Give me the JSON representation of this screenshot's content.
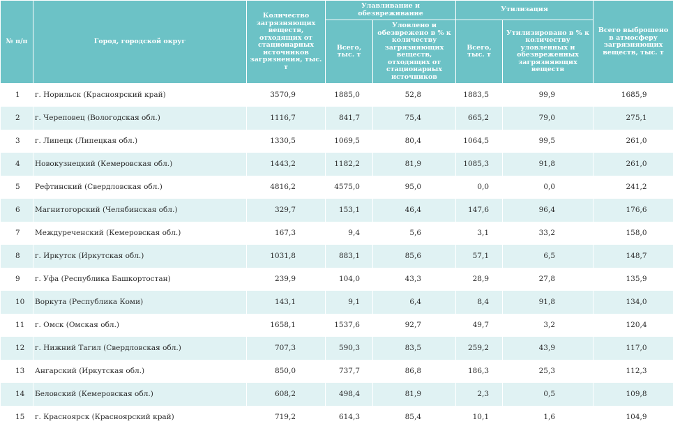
{
  "header": {
    "num": "№ п/п",
    "city": "Город, городской округ",
    "total_pollutants": "Количество загрязняющих веществ, отходящих от стационарных источников загрязнения, тыс. т",
    "capture_group": "Улавливание и обезвреживание",
    "capture_total": "Всего, тыс. т",
    "capture_pct": "Уловлено и обезврежено в % к количеству загрязняющих веществ, отходящих от стационарных источников",
    "util_group": "Утилизация",
    "util_total": "Всего, тыс. т",
    "util_pct": "Утилизировано в % к количеству уловленных и обезвреженных загрязняющих веществ",
    "emitted": "Всего выброшено в атмосферу загрязняющих веществ, тыс. т"
  },
  "rows": [
    {
      "n": "1",
      "city": "г. Норильск (Красноярский край)",
      "total": "3570,9",
      "cap": "1885,0",
      "cap_pct": "52,8",
      "util": "1883,5",
      "util_pct": "99,9",
      "emitted": "1685,9"
    },
    {
      "n": "2",
      "city": "г. Череповец (Вологодская обл.)",
      "total": "1116,7",
      "cap": "841,7",
      "cap_pct": "75,4",
      "util": "665,2",
      "util_pct": "79,0",
      "emitted": "275,1"
    },
    {
      "n": "3",
      "city": "г. Липецк (Липецкая обл.)",
      "total": "1330,5",
      "cap": "1069,5",
      "cap_pct": "80,4",
      "util": "1064,5",
      "util_pct": "99,5",
      "emitted": "261,0"
    },
    {
      "n": "4",
      "city": "Новокузнецкий (Кемеровская обл.)",
      "total": "1443,2",
      "cap": "1182,2",
      "cap_pct": "81,9",
      "util": "1085,3",
      "util_pct": "91,8",
      "emitted": "261,0"
    },
    {
      "n": "5",
      "city": "Рефтинский (Свердловская обл.)",
      "total": "4816,2",
      "cap": "4575,0",
      "cap_pct": "95,0",
      "util": "0,0",
      "util_pct": "0,0",
      "emitted": "241,2"
    },
    {
      "n": "6",
      "city": "Магнитогорский (Челябинская обл.)",
      "total": "329,7",
      "cap": "153,1",
      "cap_pct": "46,4",
      "util": "147,6",
      "util_pct": "96,4",
      "emitted": "176,6"
    },
    {
      "n": "7",
      "city": "Междуреченский (Кемеровская обл.)",
      "total": "167,3",
      "cap": "9,4",
      "cap_pct": "5,6",
      "util": "3,1",
      "util_pct": "33,2",
      "emitted": "158,0"
    },
    {
      "n": "8",
      "city": "г. Иркутск (Иркутская обл.)",
      "total": "1031,8",
      "cap": "883,1",
      "cap_pct": "85,6",
      "util": "57,1",
      "util_pct": "6,5",
      "emitted": "148,7"
    },
    {
      "n": "9",
      "city": "г. Уфа (Республика Башкортостан)",
      "total": "239,9",
      "cap": "104,0",
      "cap_pct": "43,3",
      "util": "28,9",
      "util_pct": "27,8",
      "emitted": "135,9"
    },
    {
      "n": "10",
      "city": "Воркута (Республика Коми)",
      "total": "143,1",
      "cap": "9,1",
      "cap_pct": "6,4",
      "util": "8,4",
      "util_pct": "91,8",
      "emitted": "134,0"
    },
    {
      "n": "11",
      "city": "г. Омск (Омская обл.)",
      "total": "1658,1",
      "cap": "1537,6",
      "cap_pct": "92,7",
      "util": "49,7",
      "util_pct": "3,2",
      "emitted": "120,4"
    },
    {
      "n": "12",
      "city": "г. Нижний Тагил (Свердловская обл.)",
      "total": "707,3",
      "cap": "590,3",
      "cap_pct": "83,5",
      "util": "259,2",
      "util_pct": "43,9",
      "emitted": "117,0"
    },
    {
      "n": "13",
      "city": "Ангарский (Иркутская обл.)",
      "total": "850,0",
      "cap": "737,7",
      "cap_pct": "86,8",
      "util": "186,3",
      "util_pct": "25,3",
      "emitted": "112,3"
    },
    {
      "n": "14",
      "city": "Беловский (Кемеровская обл.)",
      "total": "608,2",
      "cap": "498,4",
      "cap_pct": "81,9",
      "util": "2,3",
      "util_pct": "0,5",
      "emitted": "109,8"
    },
    {
      "n": "15",
      "city": "г. Красноярск (Красноярский край)",
      "total": "719,2",
      "cap": "614,3",
      "cap_pct": "85,4",
      "util": "10,1",
      "util_pct": "1,6",
      "emitted": "104,9"
    }
  ]
}
